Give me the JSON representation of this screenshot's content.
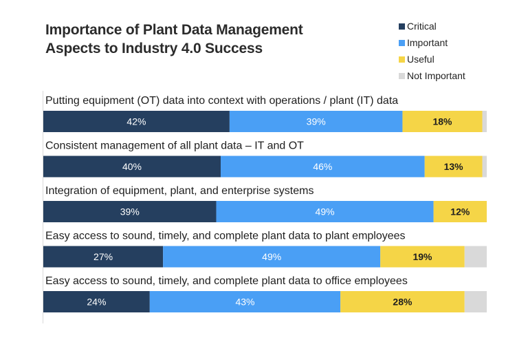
{
  "chart_data": {
    "type": "bar",
    "orientation": "horizontal",
    "stacked": true,
    "title": "Importance of Plant Data Management Aspects to Industry 4.0 Success",
    "title_lines": [
      "Importance of Plant Data Management",
      "Aspects to Industry 4.0 Success"
    ],
    "xlabel": "",
    "ylabel": "",
    "xlim": [
      0,
      100
    ],
    "grid": false,
    "legend_position": "top-right",
    "categories": [
      "Putting equipment (OT) data into context with operations / plant (IT) data",
      "Consistent management of all plant data – IT and OT",
      "Integration of equipment, plant, and enterprise systems",
      "Easy access to sound, timely, and complete plant data to plant employees",
      "Easy access to sound, timely, and complete plant data to office employees"
    ],
    "series": [
      {
        "name": "Critical",
        "color": "#253f5f",
        "label_color": "#ffffff",
        "values": [
          42,
          40,
          39,
          27,
          24
        ]
      },
      {
        "name": "Important",
        "color": "#4a9ff5",
        "label_color": "#ffffff",
        "values": [
          39,
          46,
          49,
          49,
          43
        ]
      },
      {
        "name": "Useful",
        "color": "#f5d547",
        "label_color": "#1e1e1e",
        "values": [
          18,
          13,
          12,
          19,
          28
        ]
      },
      {
        "name": "Not Important",
        "color": "#d9d9d9",
        "label_color": "#1e1e1e",
        "values": [
          1,
          1,
          0,
          5,
          5
        ]
      }
    ],
    "data_labels": {
      "Critical": [
        "42%",
        "40%",
        "39%",
        "27%",
        "24%"
      ],
      "Important": [
        "39%",
        "46%",
        "49%",
        "49%",
        "43%"
      ],
      "Useful": [
        "18%",
        "13%",
        "12%",
        "19%",
        "28%"
      ],
      "Not Important": [
        "",
        "",
        "",
        "",
        ""
      ]
    }
  }
}
